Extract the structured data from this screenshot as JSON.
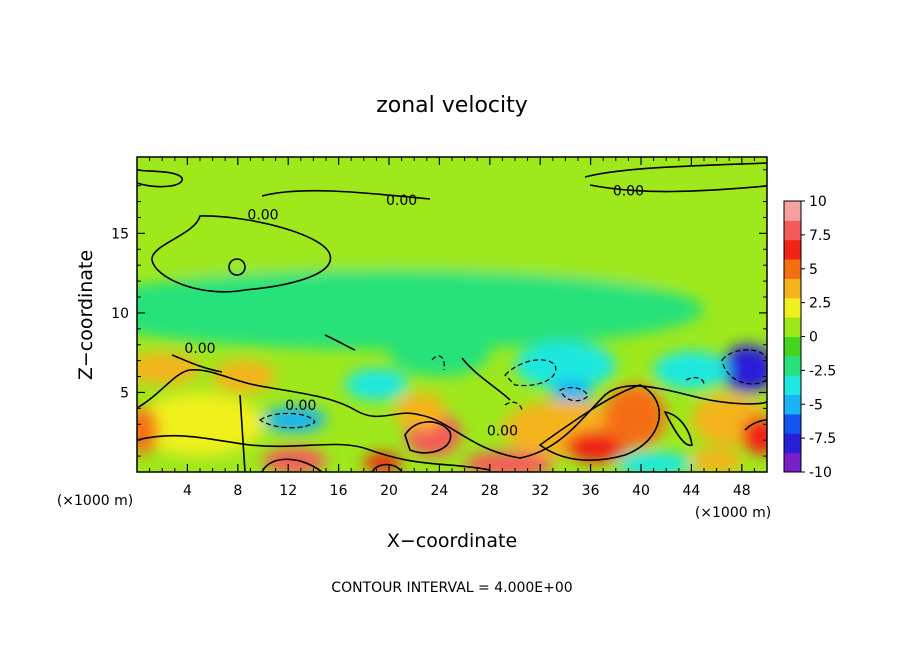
{
  "chart_data": {
    "type": "heatmap",
    "title": "zonal velocity",
    "xlabel": "X−coordinate",
    "ylabel": "Z−coordinate",
    "x_unit_left": "(×1000 m)",
    "x_unit_right": "(×1000 m)",
    "footer": "CONTOUR INTERVAL = 4.000E+00",
    "xlim": [
      0,
      50
    ],
    "ylim": [
      0,
      19.8
    ],
    "x_ticks": [
      4,
      8,
      12,
      16,
      20,
      24,
      28,
      32,
      36,
      40,
      44,
      48
    ],
    "y_ticks": [
      5,
      10,
      15
    ],
    "colorbar": {
      "range": [
        -10,
        10
      ],
      "ticks": [
        10,
        7.5,
        5,
        2.5,
        0,
        -2.5,
        -5,
        -7.5,
        -10
      ],
      "colors": [
        "#7a1fc9",
        "#2a1fd8",
        "#1454f0",
        "#19b4f5",
        "#1fe8e0",
        "#27e27a",
        "#45d420",
        "#9ee81c",
        "#f0f01e",
        "#f5b41c",
        "#f56e12",
        "#f02414",
        "#f55a5a",
        "#f7a0a0"
      ]
    },
    "contour_labels": [
      {
        "x": 10,
        "y": 16.2,
        "text": "0.00"
      },
      {
        "x": 21,
        "y": 17.1,
        "text": "0.00"
      },
      {
        "x": 39,
        "y": 17.7,
        "text": "0.00"
      },
      {
        "x": 5,
        "y": 7.8,
        "text": "0.00"
      },
      {
        "x": 13,
        "y": 4.2,
        "text": "0.00"
      },
      {
        "x": 29,
        "y": 2.6,
        "text": "0.00"
      }
    ],
    "blobs": [
      {
        "x": 25,
        "y": 16,
        "rx": 30,
        "ry": 5,
        "v": 0
      },
      {
        "x": 10,
        "y": 13.5,
        "rx": 6,
        "ry": 2.5,
        "v": 0.8
      },
      {
        "x": 6,
        "y": 18.5,
        "rx": 6,
        "ry": 1.5,
        "v": 0.6
      },
      {
        "x": 38,
        "y": 18.5,
        "rx": 10,
        "ry": 1.5,
        "v": 0.5
      },
      {
        "x": 20,
        "y": 10.2,
        "rx": 25,
        "ry": 2.5,
        "v": -1.8
      },
      {
        "x": 31,
        "y": 9.5,
        "rx": 5,
        "ry": 1.6,
        "v": -2.8
      },
      {
        "x": 24,
        "y": 7.5,
        "rx": 4,
        "ry": 1.5,
        "v": -2.4
      },
      {
        "x": 34,
        "y": 6.7,
        "rx": 4,
        "ry": 1.5,
        "v": -4.0
      },
      {
        "x": 34.5,
        "y": 5.0,
        "rx": 1.6,
        "ry": 0.8,
        "v": -5.5
      },
      {
        "x": 48.5,
        "y": 6.5,
        "rx": 2.2,
        "ry": 1.5,
        "v": -8.0
      },
      {
        "x": 44,
        "y": 6.4,
        "rx": 3,
        "ry": 1.2,
        "v": -3.0
      },
      {
        "x": 12.5,
        "y": 3.3,
        "rx": 2.5,
        "ry": 0.8,
        "v": -5.0
      },
      {
        "x": 19,
        "y": 5.5,
        "rx": 2.5,
        "ry": 1.0,
        "v": -3.0
      },
      {
        "x": 2,
        "y": 6.5,
        "rx": 3,
        "ry": 1.0,
        "v": 3.0
      },
      {
        "x": 8.5,
        "y": 6.0,
        "rx": 2.5,
        "ry": 1.0,
        "v": 3.0
      },
      {
        "x": 5,
        "y": 3.0,
        "rx": 5,
        "ry": 2.0,
        "v": 2.5
      },
      {
        "x": 12.5,
        "y": 0.7,
        "rx": 2.5,
        "ry": 0.8,
        "v": 8.0
      },
      {
        "x": 19.5,
        "y": 0.6,
        "rx": 1.5,
        "ry": 0.6,
        "v": 6.0
      },
      {
        "x": 23.5,
        "y": 2.4,
        "rx": 2.2,
        "ry": 1.4,
        "v": 8.5
      },
      {
        "x": 22.5,
        "y": 3.8,
        "rx": 2.0,
        "ry": 1.2,
        "v": 4.0
      },
      {
        "x": 29.5,
        "y": 0.5,
        "rx": 3.5,
        "ry": 0.8,
        "v": 8.0
      },
      {
        "x": 34,
        "y": 2.7,
        "rx": 5,
        "ry": 1.8,
        "v": 4.0
      },
      {
        "x": 36.5,
        "y": 1.6,
        "rx": 2.5,
        "ry": 1.0,
        "v": 6.0
      },
      {
        "x": 39.5,
        "y": 3.5,
        "rx": 2.5,
        "ry": 2.0,
        "v": 5.5
      },
      {
        "x": 47,
        "y": 3.3,
        "rx": 3,
        "ry": 1.6,
        "v": 3.0
      },
      {
        "x": 49.5,
        "y": 2.3,
        "rx": 1.5,
        "ry": 1.2,
        "v": 7.0
      },
      {
        "x": 0.5,
        "y": 2.6,
        "rx": 1.2,
        "ry": 1.5,
        "v": 5.0
      },
      {
        "x": 41,
        "y": 0.5,
        "rx": 3,
        "ry": 0.8,
        "v": -3.0
      },
      {
        "x": 46,
        "y": 0.7,
        "rx": 2,
        "ry": 0.8,
        "v": 3.0
      }
    ]
  }
}
